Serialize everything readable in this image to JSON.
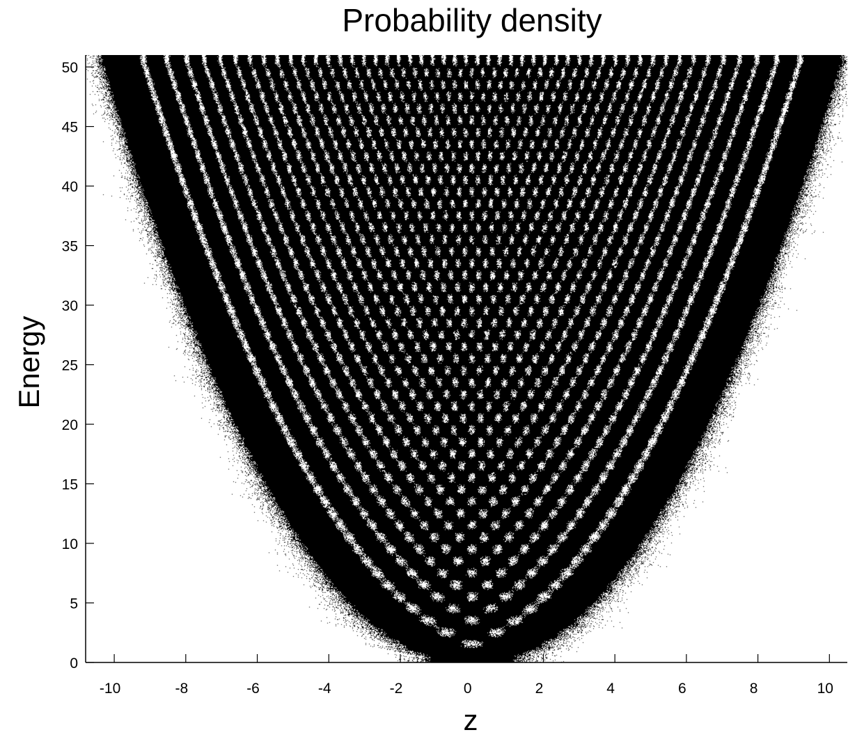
{
  "colors": {
    "background": "#ffffff",
    "ink": "#000000"
  },
  "chart_data": {
    "type": "heatmap",
    "title": "Probability density",
    "xlabel": "z",
    "ylabel": "Energy",
    "xlim": [
      -10.8,
      10.5
    ],
    "ylim": [
      0,
      51
    ],
    "x_ticks": [
      -10,
      -8,
      -6,
      -4,
      -2,
      0,
      2,
      4,
      6,
      8,
      10
    ],
    "y_ticks": [
      0,
      5,
      10,
      15,
      20,
      25,
      30,
      35,
      40,
      45,
      50
    ],
    "x_tick_labels": [
      "-10",
      "-8",
      "-6",
      "-4",
      "-2",
      "0",
      "2",
      "4",
      "6",
      "8",
      "10"
    ],
    "y_tick_labels": [
      "0",
      "5",
      "10",
      "15",
      "20",
      "25",
      "30",
      "35",
      "40",
      "45",
      "50"
    ],
    "grid": false,
    "legend": "none",
    "description_of_values": "Quantum harmonic oscillator |psi_n(z)|^2 density bands, energy levels E_n = n + 1/2 for n = 0..50",
    "energy_levels": [
      0.5,
      1.5,
      2.5,
      3.5,
      4.5,
      5.5,
      6.5,
      7.5,
      8.5,
      9.5,
      10.5,
      11.5,
      12.5,
      13.5,
      14.5,
      15.5,
      16.5,
      17.5,
      18.5,
      19.5,
      20.5,
      21.5,
      22.5,
      23.5,
      24.5,
      25.5,
      26.5,
      27.5,
      28.5,
      29.5,
      30.5,
      31.5,
      32.5,
      33.5,
      34.5,
      35.5,
      36.5,
      37.5,
      38.5,
      39.5,
      40.5,
      41.5,
      42.5,
      43.5,
      44.5,
      45.5,
      46.5,
      47.5,
      48.5,
      49.5,
      50.5
    ],
    "classical_turning_points": "z = ±sqrt(2E)"
  }
}
